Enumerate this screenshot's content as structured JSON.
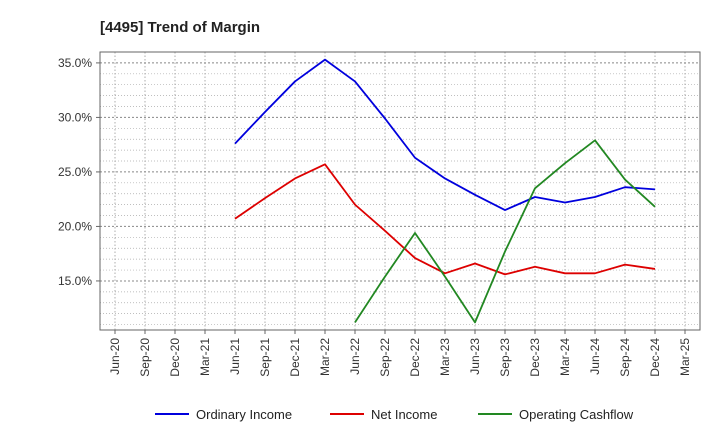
{
  "chart_data": {
    "type": "line",
    "title": "[4495]  Trend of Margin",
    "xlabel": "",
    "ylabel": "",
    "ylim": [
      10.5,
      36
    ],
    "y_ticks": [
      15,
      20,
      25,
      30,
      35
    ],
    "y_tick_labels": [
      "15.0%",
      "20.0%",
      "25.0%",
      "30.0%",
      "35.0%"
    ],
    "categories": [
      "Jun-20",
      "Sep-20",
      "Dec-20",
      "Mar-21",
      "Jun-21",
      "Sep-21",
      "Dec-21",
      "Mar-22",
      "Jun-22",
      "Sep-22",
      "Dec-22",
      "Mar-23",
      "Jun-23",
      "Sep-23",
      "Dec-23",
      "Mar-24",
      "Jun-24",
      "Sep-24",
      "Dec-24",
      "Mar-25"
    ],
    "grid": true,
    "legend_position": "bottom",
    "series": [
      {
        "name": "Ordinary Income",
        "color": "#0000dd",
        "values": [
          null,
          null,
          null,
          null,
          27.6,
          30.5,
          33.3,
          35.3,
          33.3,
          29.9,
          26.3,
          24.4,
          22.9,
          21.5,
          22.7,
          22.2,
          22.7,
          23.6,
          23.4,
          null
        ]
      },
      {
        "name": "Net Income",
        "color": "#dd0000",
        "values": [
          null,
          null,
          null,
          null,
          20.7,
          22.6,
          24.4,
          25.7,
          22.0,
          19.6,
          17.1,
          15.7,
          16.6,
          15.6,
          16.3,
          15.7,
          15.7,
          16.5,
          16.1,
          null
        ]
      },
      {
        "name": "Operating Cashflow",
        "color": "#228822",
        "values": [
          null,
          null,
          null,
          null,
          null,
          null,
          null,
          null,
          11.2,
          15.4,
          19.4,
          15.4,
          11.2,
          17.7,
          23.5,
          25.8,
          27.9,
          24.3,
          21.8,
          null
        ]
      }
    ]
  }
}
